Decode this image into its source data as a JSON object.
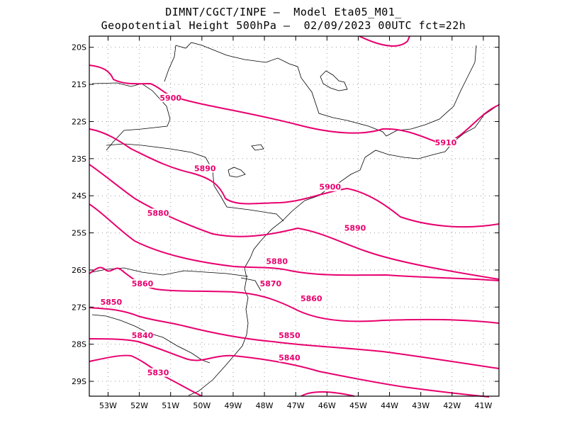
{
  "title": {
    "line1": "DIMNT/CGCT/INPE –  Model Eta05_M01_",
    "line2": "Geopotential Height 500hPa –  02/09/2023 00UTC fct=22h"
  },
  "colors": {
    "contour": "#e8006e",
    "coast": "#000000",
    "grid": "#9a9a9a"
  },
  "axes": {
    "lat_labels": [
      "20S",
      "21S",
      "22S",
      "23S",
      "24S",
      "25S",
      "26S",
      "27S",
      "28S",
      "29S"
    ],
    "lon_labels": [
      "53W",
      "52W",
      "51W",
      "50W",
      "49W",
      "48W",
      "47W",
      "46W",
      "45W",
      "44W",
      "43W",
      "42W",
      "41W"
    ]
  },
  "contour_labels": [
    {
      "text": "5910",
      "lon": -42.2,
      "lat": -22.6
    },
    {
      "text": "5900",
      "lon": -51.0,
      "lat": -21.4
    },
    {
      "text": "5900",
      "lon": -45.9,
      "lat": -23.8
    },
    {
      "text": "5890",
      "lon": -49.9,
      "lat": -23.3
    },
    {
      "text": "5890",
      "lon": -45.1,
      "lat": -24.9
    },
    {
      "text": "5880",
      "lon": -51.4,
      "lat": -24.5
    },
    {
      "text": "5880",
      "lon": -47.6,
      "lat": -25.8
    },
    {
      "text": "5870",
      "lon": -47.8,
      "lat": -26.4
    },
    {
      "text": "5860",
      "lon": -51.9,
      "lat": -26.4
    },
    {
      "text": "5860",
      "lon": -46.5,
      "lat": -26.8
    },
    {
      "text": "5850",
      "lon": -52.9,
      "lat": -26.9
    },
    {
      "text": "5850",
      "lon": -47.2,
      "lat": -27.8
    },
    {
      "text": "5840",
      "lon": -51.9,
      "lat": -27.8
    },
    {
      "text": "5840",
      "lon": -47.2,
      "lat": -28.4
    },
    {
      "text": "5830",
      "lon": -51.4,
      "lat": -28.8
    }
  ]
}
